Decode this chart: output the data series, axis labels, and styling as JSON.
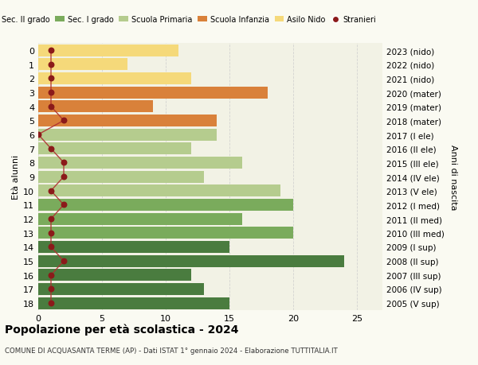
{
  "ages": [
    18,
    17,
    16,
    15,
    14,
    13,
    12,
    11,
    10,
    9,
    8,
    7,
    6,
    5,
    4,
    3,
    2,
    1,
    0
  ],
  "years": [
    "2005 (V sup)",
    "2006 (IV sup)",
    "2007 (III sup)",
    "2008 (II sup)",
    "2009 (I sup)",
    "2010 (III med)",
    "2011 (II med)",
    "2012 (I med)",
    "2013 (V ele)",
    "2014 (IV ele)",
    "2015 (III ele)",
    "2016 (II ele)",
    "2017 (I ele)",
    "2018 (mater)",
    "2019 (mater)",
    "2020 (mater)",
    "2021 (nido)",
    "2022 (nido)",
    "2023 (nido)"
  ],
  "values": [
    15,
    13,
    12,
    24,
    15,
    20,
    16,
    20,
    19,
    13,
    16,
    12,
    14,
    14,
    9,
    18,
    12,
    7,
    11
  ],
  "stranieri": [
    1,
    1,
    1,
    2,
    1,
    1,
    1,
    2,
    1,
    2,
    2,
    1,
    0,
    2,
    1,
    1,
    1,
    1,
    1
  ],
  "bar_colors": [
    "#4a7c3f",
    "#4a7c3f",
    "#4a7c3f",
    "#4a7c3f",
    "#4a7c3f",
    "#7aab5c",
    "#7aab5c",
    "#7aab5c",
    "#b5cc8e",
    "#b5cc8e",
    "#b5cc8e",
    "#b5cc8e",
    "#b5cc8e",
    "#d9813a",
    "#d9813a",
    "#d9813a",
    "#f5d97a",
    "#f5d97a",
    "#f5d97a"
  ],
  "legend_colors": [
    "#4a7c3f",
    "#7aab5c",
    "#b5cc8e",
    "#d9813a",
    "#f5d97a",
    "#c0392b"
  ],
  "legend_labels": [
    "Sec. II grado",
    "Sec. I grado",
    "Scuola Primaria",
    "Scuola Infanzia",
    "Asilo Nido",
    "Stranieri"
  ],
  "ylabel_left": "Età alunni",
  "ylabel_right": "Anni di nascita",
  "title": "Popolazione per età scolastica - 2024",
  "subtitle": "COMUNE DI ACQUASANTA TERME (AP) - Dati ISTAT 1° gennaio 2024 - Elaborazione TUTTITALIA.IT",
  "xlim": [
    0,
    27
  ],
  "background_color": "#fafaf2",
  "bar_background": "#f2f2e5",
  "grid_color": "#cccccc",
  "stranieri_color": "#8b1a1a",
  "stranieri_line_color": "#b03030"
}
